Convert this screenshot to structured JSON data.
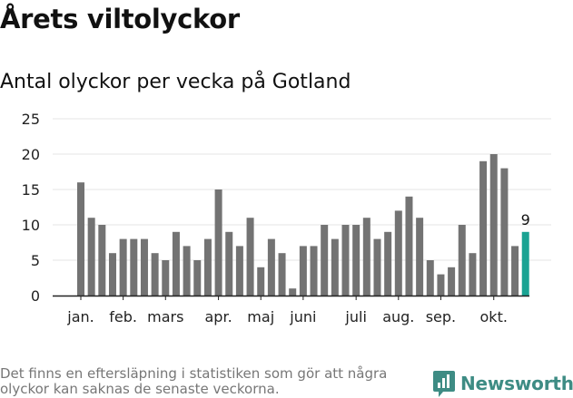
{
  "title": "Årets viltolyckor",
  "subtitle": "Antal olyckor per vecka på Gotland",
  "footnote": "Det finns en eftersläpning i statistiken som gör att några olyckor kan saknas de senaste veckorna.",
  "brand": {
    "name": "Newsworthy",
    "logo_icon": "newsworthy-logo-icon",
    "color": "#3e8c84"
  },
  "colors": {
    "bar": "#737373",
    "highlight": "#1aa393",
    "grid": "#e6e6e6",
    "axis": "#222222"
  },
  "chart_data": {
    "type": "bar",
    "title": "Antal olyckor per vecka på Gotland",
    "xlabel": "",
    "ylabel": "",
    "ylim": [
      0,
      25
    ],
    "yticks": [
      0,
      5,
      10,
      15,
      20,
      25
    ],
    "grid": true,
    "legend": "none",
    "month_labels": [
      {
        "label": "jan.",
        "week": 1
      },
      {
        "label": "feb.",
        "week": 5
      },
      {
        "label": "mars",
        "week": 9
      },
      {
        "label": "apr.",
        "week": 14
      },
      {
        "label": "maj",
        "week": 18
      },
      {
        "label": "juni",
        "week": 22
      },
      {
        "label": "juli",
        "week": 27
      },
      {
        "label": "aug.",
        "week": 31
      },
      {
        "label": "sep.",
        "week": 35
      },
      {
        "label": "okt.",
        "week": 40
      }
    ],
    "weeks": [
      1,
      2,
      3,
      4,
      5,
      6,
      7,
      8,
      9,
      10,
      11,
      12,
      13,
      14,
      15,
      16,
      17,
      18,
      19,
      20,
      21,
      22,
      23,
      24,
      25,
      26,
      27,
      28,
      29,
      30,
      31,
      32,
      33,
      34,
      35,
      36,
      37,
      38,
      39,
      40,
      41,
      42,
      43
    ],
    "values": [
      16,
      11,
      10,
      6,
      8,
      8,
      8,
      6,
      5,
      9,
      7,
      5,
      8,
      15,
      9,
      7,
      11,
      4,
      8,
      6,
      1,
      7,
      7,
      10,
      8,
      10,
      10,
      11,
      8,
      9,
      12,
      14,
      11,
      5,
      3,
      4,
      10,
      6,
      19,
      20,
      18,
      7,
      9
    ],
    "highlight_index": 42,
    "highlight_label": "9"
  }
}
